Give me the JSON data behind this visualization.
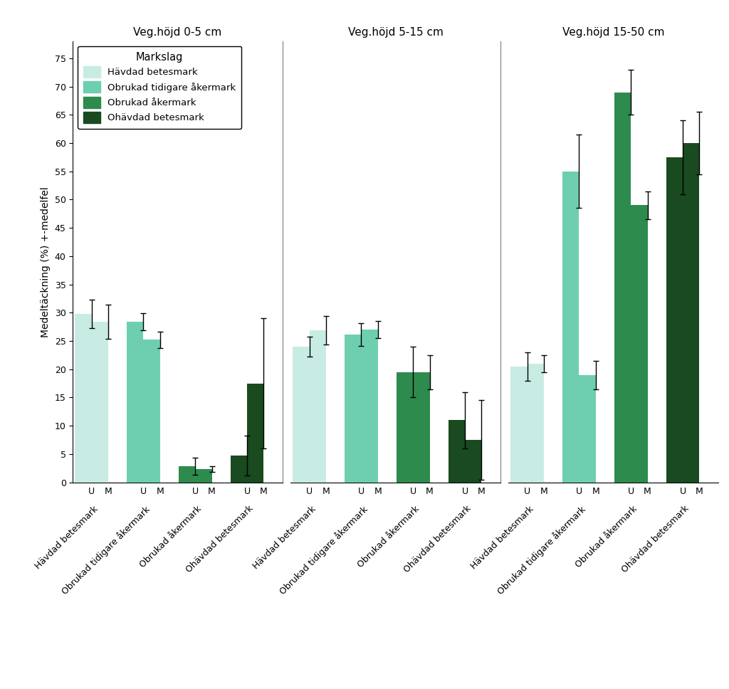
{
  "ylabel": "Medeltäckning (%) +-medelfel",
  "colors": [
    "#c8ece3",
    "#6ecfb0",
    "#2d8b4e",
    "#1a4a20"
  ],
  "legend_labels": [
    "Hävdad betesmark",
    "Obrukad tidigare åkermark",
    "Obrukad åkermark",
    "Ohävdad betesmark"
  ],
  "facet_labels": [
    "Veg.höjd 0-5 cm",
    "Veg.höjd 5-15 cm",
    "Veg.höjd 15-50 cm"
  ],
  "group_labels": [
    "Hävdad betesmark",
    "Obrukad tidigare åkermark",
    "Obrukad åkermark",
    "Ohävdad betesmark"
  ],
  "ylim": [
    0,
    78
  ],
  "yticks": [
    0,
    5,
    10,
    15,
    20,
    25,
    30,
    35,
    40,
    45,
    50,
    55,
    60,
    65,
    70,
    75
  ],
  "facets": [
    {
      "label": "Veg.höjd 0-5 cm",
      "groups": [
        {
          "U": 29.8,
          "M": 28.4,
          "U_err": 2.5,
          "M_err": 3.0
        },
        {
          "U": 28.4,
          "M": 25.2,
          "U_err": 1.5,
          "M_err": 1.5
        },
        {
          "U": 2.8,
          "M": 2.3,
          "U_err": 1.5,
          "M_err": 0.5
        },
        {
          "U": 4.7,
          "M": 17.5,
          "U_err": 3.5,
          "M_err": 11.5
        }
      ]
    },
    {
      "label": "Veg.höjd 5-15 cm",
      "groups": [
        {
          "U": 24.0,
          "M": 26.9,
          "U_err": 1.8,
          "M_err": 2.5
        },
        {
          "U": 26.1,
          "M": 27.0,
          "U_err": 2.0,
          "M_err": 1.5
        },
        {
          "U": 19.5,
          "M": 19.5,
          "U_err": 4.5,
          "M_err": 3.0
        },
        {
          "U": 11.0,
          "M": 7.5,
          "U_err": 5.0,
          "M_err": 7.0
        }
      ]
    },
    {
      "label": "Veg.höjd 15-50 cm",
      "groups": [
        {
          "U": 20.5,
          "M": 21.0,
          "U_err": 2.5,
          "M_err": 1.5
        },
        {
          "U": 55.0,
          "M": 19.0,
          "U_err": 6.5,
          "M_err": 2.5
        },
        {
          "U": 69.0,
          "M": 49.0,
          "U_err": 4.0,
          "M_err": 2.5
        },
        {
          "U": 57.5,
          "M": 60.0,
          "U_err": 6.5,
          "M_err": 5.5
        }
      ]
    }
  ]
}
